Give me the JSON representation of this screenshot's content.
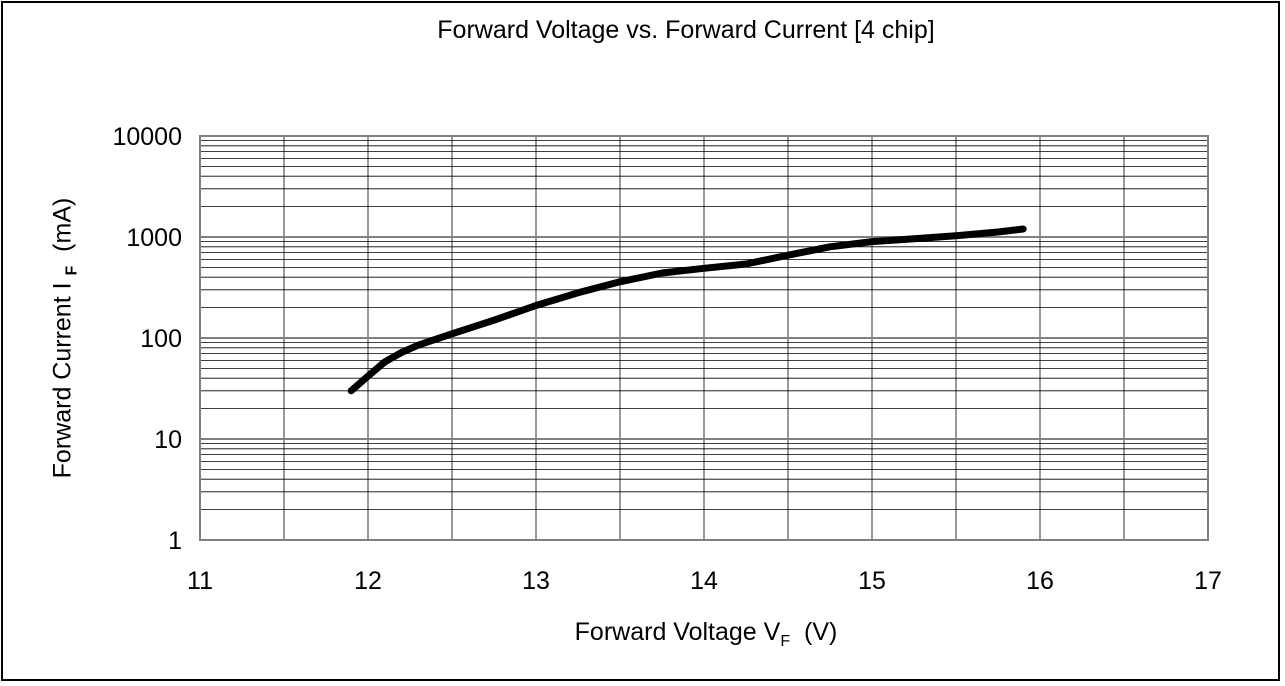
{
  "chart_data": {
    "type": "line",
    "title": "Forward Voltage vs. Forward Current [4 chip]",
    "xlabel": {
      "main": "Forward Voltage V",
      "sub": "F",
      "unit": "  (V)"
    },
    "ylabel": {
      "main": "Forward Current I ",
      "sub": "F",
      "unit": "  (mA)"
    },
    "xlim": [
      11,
      17
    ],
    "ylim": [
      1,
      10000
    ],
    "yscale": "log",
    "grid": true,
    "legend": "none",
    "x_ticks": [
      "11",
      "12",
      "13",
      "14",
      "15",
      "16",
      "17"
    ],
    "y_ticks": [
      "1",
      "10",
      "100",
      "1000",
      "10000"
    ],
    "series": [
      {
        "color": "#000000",
        "points": [
          {
            "x": 11.9,
            "y": 30
          },
          {
            "x": 12.0,
            "y": 42
          },
          {
            "x": 12.1,
            "y": 58
          },
          {
            "x": 12.2,
            "y": 72
          },
          {
            "x": 12.3,
            "y": 85
          },
          {
            "x": 12.5,
            "y": 110
          },
          {
            "x": 12.75,
            "y": 150
          },
          {
            "x": 13.0,
            "y": 210
          },
          {
            "x": 13.25,
            "y": 280
          },
          {
            "x": 13.5,
            "y": 360
          },
          {
            "x": 13.75,
            "y": 440
          },
          {
            "x": 14.0,
            "y": 490
          },
          {
            "x": 14.25,
            "y": 540
          },
          {
            "x": 14.5,
            "y": 660
          },
          {
            "x": 14.75,
            "y": 800
          },
          {
            "x": 15.0,
            "y": 900
          },
          {
            "x": 15.25,
            "y": 960
          },
          {
            "x": 15.5,
            "y": 1030
          },
          {
            "x": 15.75,
            "y": 1120
          },
          {
            "x": 15.9,
            "y": 1200
          }
        ]
      }
    ]
  }
}
